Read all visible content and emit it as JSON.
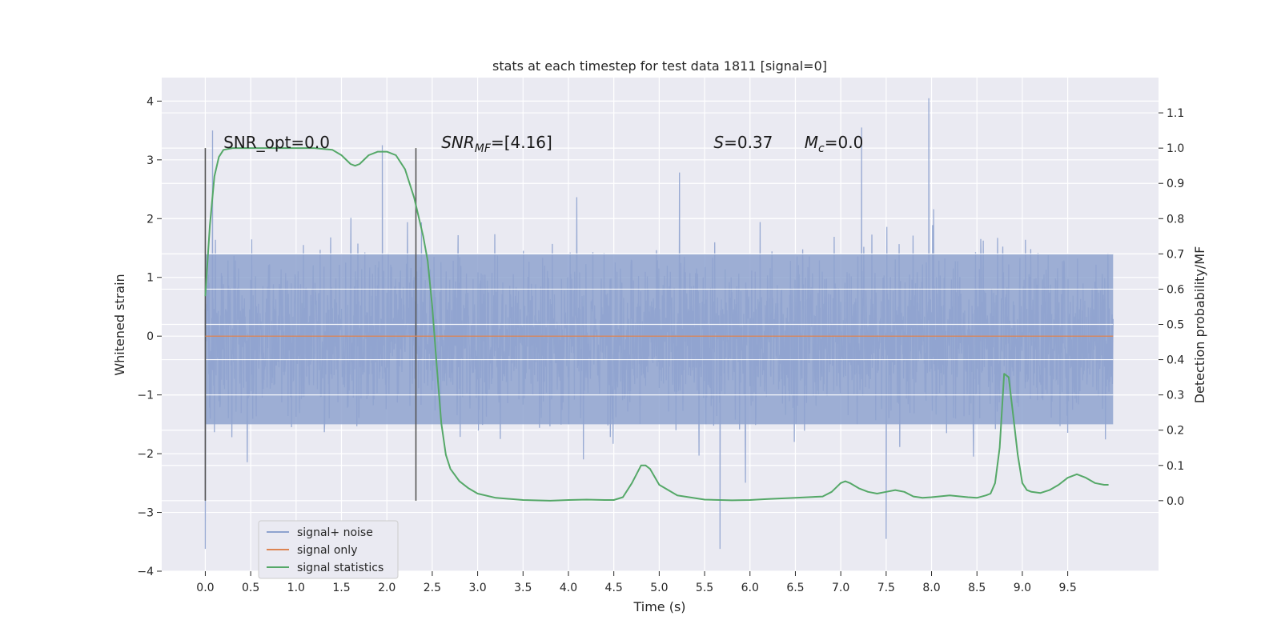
{
  "chart_data": {
    "type": "line",
    "title": "stats at each timestep for test data 1811 [signal=0]",
    "xlabel": "Time (s)",
    "ylabel": "Whitened strain",
    "ylabel_right": "Detection probability/MF",
    "xlim": [
      -0.48,
      10.5
    ],
    "ylim": [
      -4,
      4.4
    ],
    "ylim_right": [
      -0.2,
      1.2
    ],
    "x_ticks": [
      0.0,
      0.5,
      1.0,
      1.5,
      2.0,
      2.5,
      3.0,
      3.5,
      4.0,
      4.5,
      5.0,
      5.5,
      6.0,
      6.5,
      7.0,
      7.5,
      8.0,
      8.5,
      9.0,
      9.5
    ],
    "x_tick_labels": [
      "0.0",
      "0.5",
      "1.0",
      "1.5",
      "2.0",
      "2.5",
      "3.0",
      "3.5",
      "4.0",
      "4.5",
      "5.0",
      "5.5",
      "6.0",
      "6.5",
      "7.0",
      "7.5",
      "8.0",
      "8.5",
      "9.0",
      "9.5"
    ],
    "y_ticks": [
      -4,
      -3,
      -2,
      -1,
      0,
      1,
      2,
      3,
      4
    ],
    "y_tick_labels": [
      "−4",
      "−3",
      "−2",
      "−1",
      "0",
      "1",
      "2",
      "3",
      "4"
    ],
    "y_right_ticks": [
      0.0,
      0.1,
      0.2,
      0.3,
      0.4,
      0.5,
      0.6,
      0.7,
      0.8,
      0.9,
      1.0,
      1.1
    ],
    "y_right_tick_labels": [
      "0.0",
      "0.1",
      "0.2",
      "0.3",
      "0.4",
      "0.5",
      "0.6",
      "0.7",
      "0.8",
      "0.9",
      "1.0",
      "1.1"
    ],
    "grid": true,
    "legend_position": "lower-left",
    "series": [
      {
        "name": "signal+ noise",
        "axis": "left",
        "color": "#8fa3cf",
        "style": "dense noise trace, x from 0 to 10 s",
        "x_range": [
          0,
          10
        ],
        "core_band": [
          -1.5,
          1.4
        ],
        "typical_peak_range": [
          -2.8,
          2.8
        ],
        "notable_extremes": [
          {
            "x": 0.0,
            "y": -3.62
          },
          {
            "x": 0.08,
            "y": 3.5
          },
          {
            "x": 1.95,
            "y": 3.25
          },
          {
            "x": 5.67,
            "y": -3.62
          },
          {
            "x": 7.5,
            "y": -3.45
          },
          {
            "x": 7.23,
            "y": 3.55
          },
          {
            "x": 7.97,
            "y": 4.05
          }
        ]
      },
      {
        "name": "signal only",
        "axis": "left",
        "color": "#dd8452",
        "x": [
          0,
          10
        ],
        "y": [
          0,
          0
        ]
      },
      {
        "name": "signal statistics",
        "axis": "right",
        "color": "#55a868",
        "x": [
          0.0,
          0.05,
          0.1,
          0.15,
          0.2,
          0.3,
          0.5,
          0.8,
          1.0,
          1.2,
          1.4,
          1.5,
          1.6,
          1.65,
          1.7,
          1.8,
          1.9,
          2.0,
          2.1,
          2.2,
          2.3,
          2.4,
          2.45,
          2.5,
          2.55,
          2.6,
          2.65,
          2.7,
          2.8,
          2.9,
          3.0,
          3.2,
          3.5,
          3.8,
          4.0,
          4.2,
          4.4,
          4.5,
          4.6,
          4.7,
          4.8,
          4.85,
          4.9,
          5.0,
          5.2,
          5.5,
          5.8,
          6.0,
          6.2,
          6.5,
          6.8,
          6.9,
          7.0,
          7.05,
          7.1,
          7.2,
          7.3,
          7.4,
          7.5,
          7.6,
          7.7,
          7.8,
          7.9,
          8.0,
          8.2,
          8.4,
          8.5,
          8.6,
          8.65,
          8.7,
          8.75,
          8.8,
          8.85,
          8.9,
          8.95,
          9.0,
          9.05,
          9.1,
          9.2,
          9.3,
          9.4,
          9.5,
          9.6,
          9.7,
          9.8,
          9.9,
          9.95
        ],
        "y": [
          0.58,
          0.78,
          0.92,
          0.975,
          0.995,
          1.0,
          1.0,
          1.0,
          1.0,
          1.0,
          0.995,
          0.98,
          0.955,
          0.95,
          0.955,
          0.98,
          0.99,
          0.99,
          0.98,
          0.94,
          0.86,
          0.75,
          0.68,
          0.55,
          0.38,
          0.22,
          0.13,
          0.09,
          0.055,
          0.035,
          0.02,
          0.008,
          0.002,
          0.0,
          0.002,
          0.003,
          0.002,
          0.002,
          0.01,
          0.05,
          0.1,
          0.1,
          0.09,
          0.045,
          0.015,
          0.003,
          0.001,
          0.002,
          0.005,
          0.008,
          0.012,
          0.025,
          0.05,
          0.055,
          0.05,
          0.035,
          0.025,
          0.02,
          0.025,
          0.03,
          0.025,
          0.012,
          0.008,
          0.01,
          0.015,
          0.01,
          0.008,
          0.015,
          0.02,
          0.05,
          0.15,
          0.36,
          0.35,
          0.24,
          0.13,
          0.05,
          0.03,
          0.025,
          0.022,
          0.03,
          0.045,
          0.065,
          0.075,
          0.065,
          0.05,
          0.045,
          0.045
        ]
      }
    ],
    "vertical_markers": [
      {
        "x": 0.0,
        "y_range": [
          -2.8,
          3.2
        ],
        "color": "#555555"
      },
      {
        "x": 2.32,
        "y_range": [
          -2.8,
          3.2
        ],
        "color": "#555555"
      }
    ],
    "annotations": [
      {
        "id": "snr-opt",
        "text": "SNR_opt=0.0",
        "x": 0.2,
        "y": 3.2,
        "italic": false
      },
      {
        "id": "snr-mf",
        "text": "SNR_MF=[4.16]",
        "base": "SNR",
        "sub": "MF",
        "rest": "=[4.16]",
        "x": 2.6,
        "y": 3.2,
        "italic": true
      },
      {
        "id": "s-stat",
        "text": "S=0.37",
        "base": "S",
        "rest": "=0.37",
        "x": 5.6,
        "y": 3.2,
        "italic": true
      },
      {
        "id": "mc",
        "text": "M_c=0.0",
        "base": "M",
        "sub": "c",
        "rest": "=0.0",
        "x": 6.6,
        "y": 3.2,
        "italic": true
      }
    ],
    "legend": [
      {
        "label": "signal+ noise",
        "color": "#8fa3cf"
      },
      {
        "label": "signal only",
        "color": "#dd8452"
      },
      {
        "label": "signal statistics",
        "color": "#55a868"
      }
    ]
  }
}
